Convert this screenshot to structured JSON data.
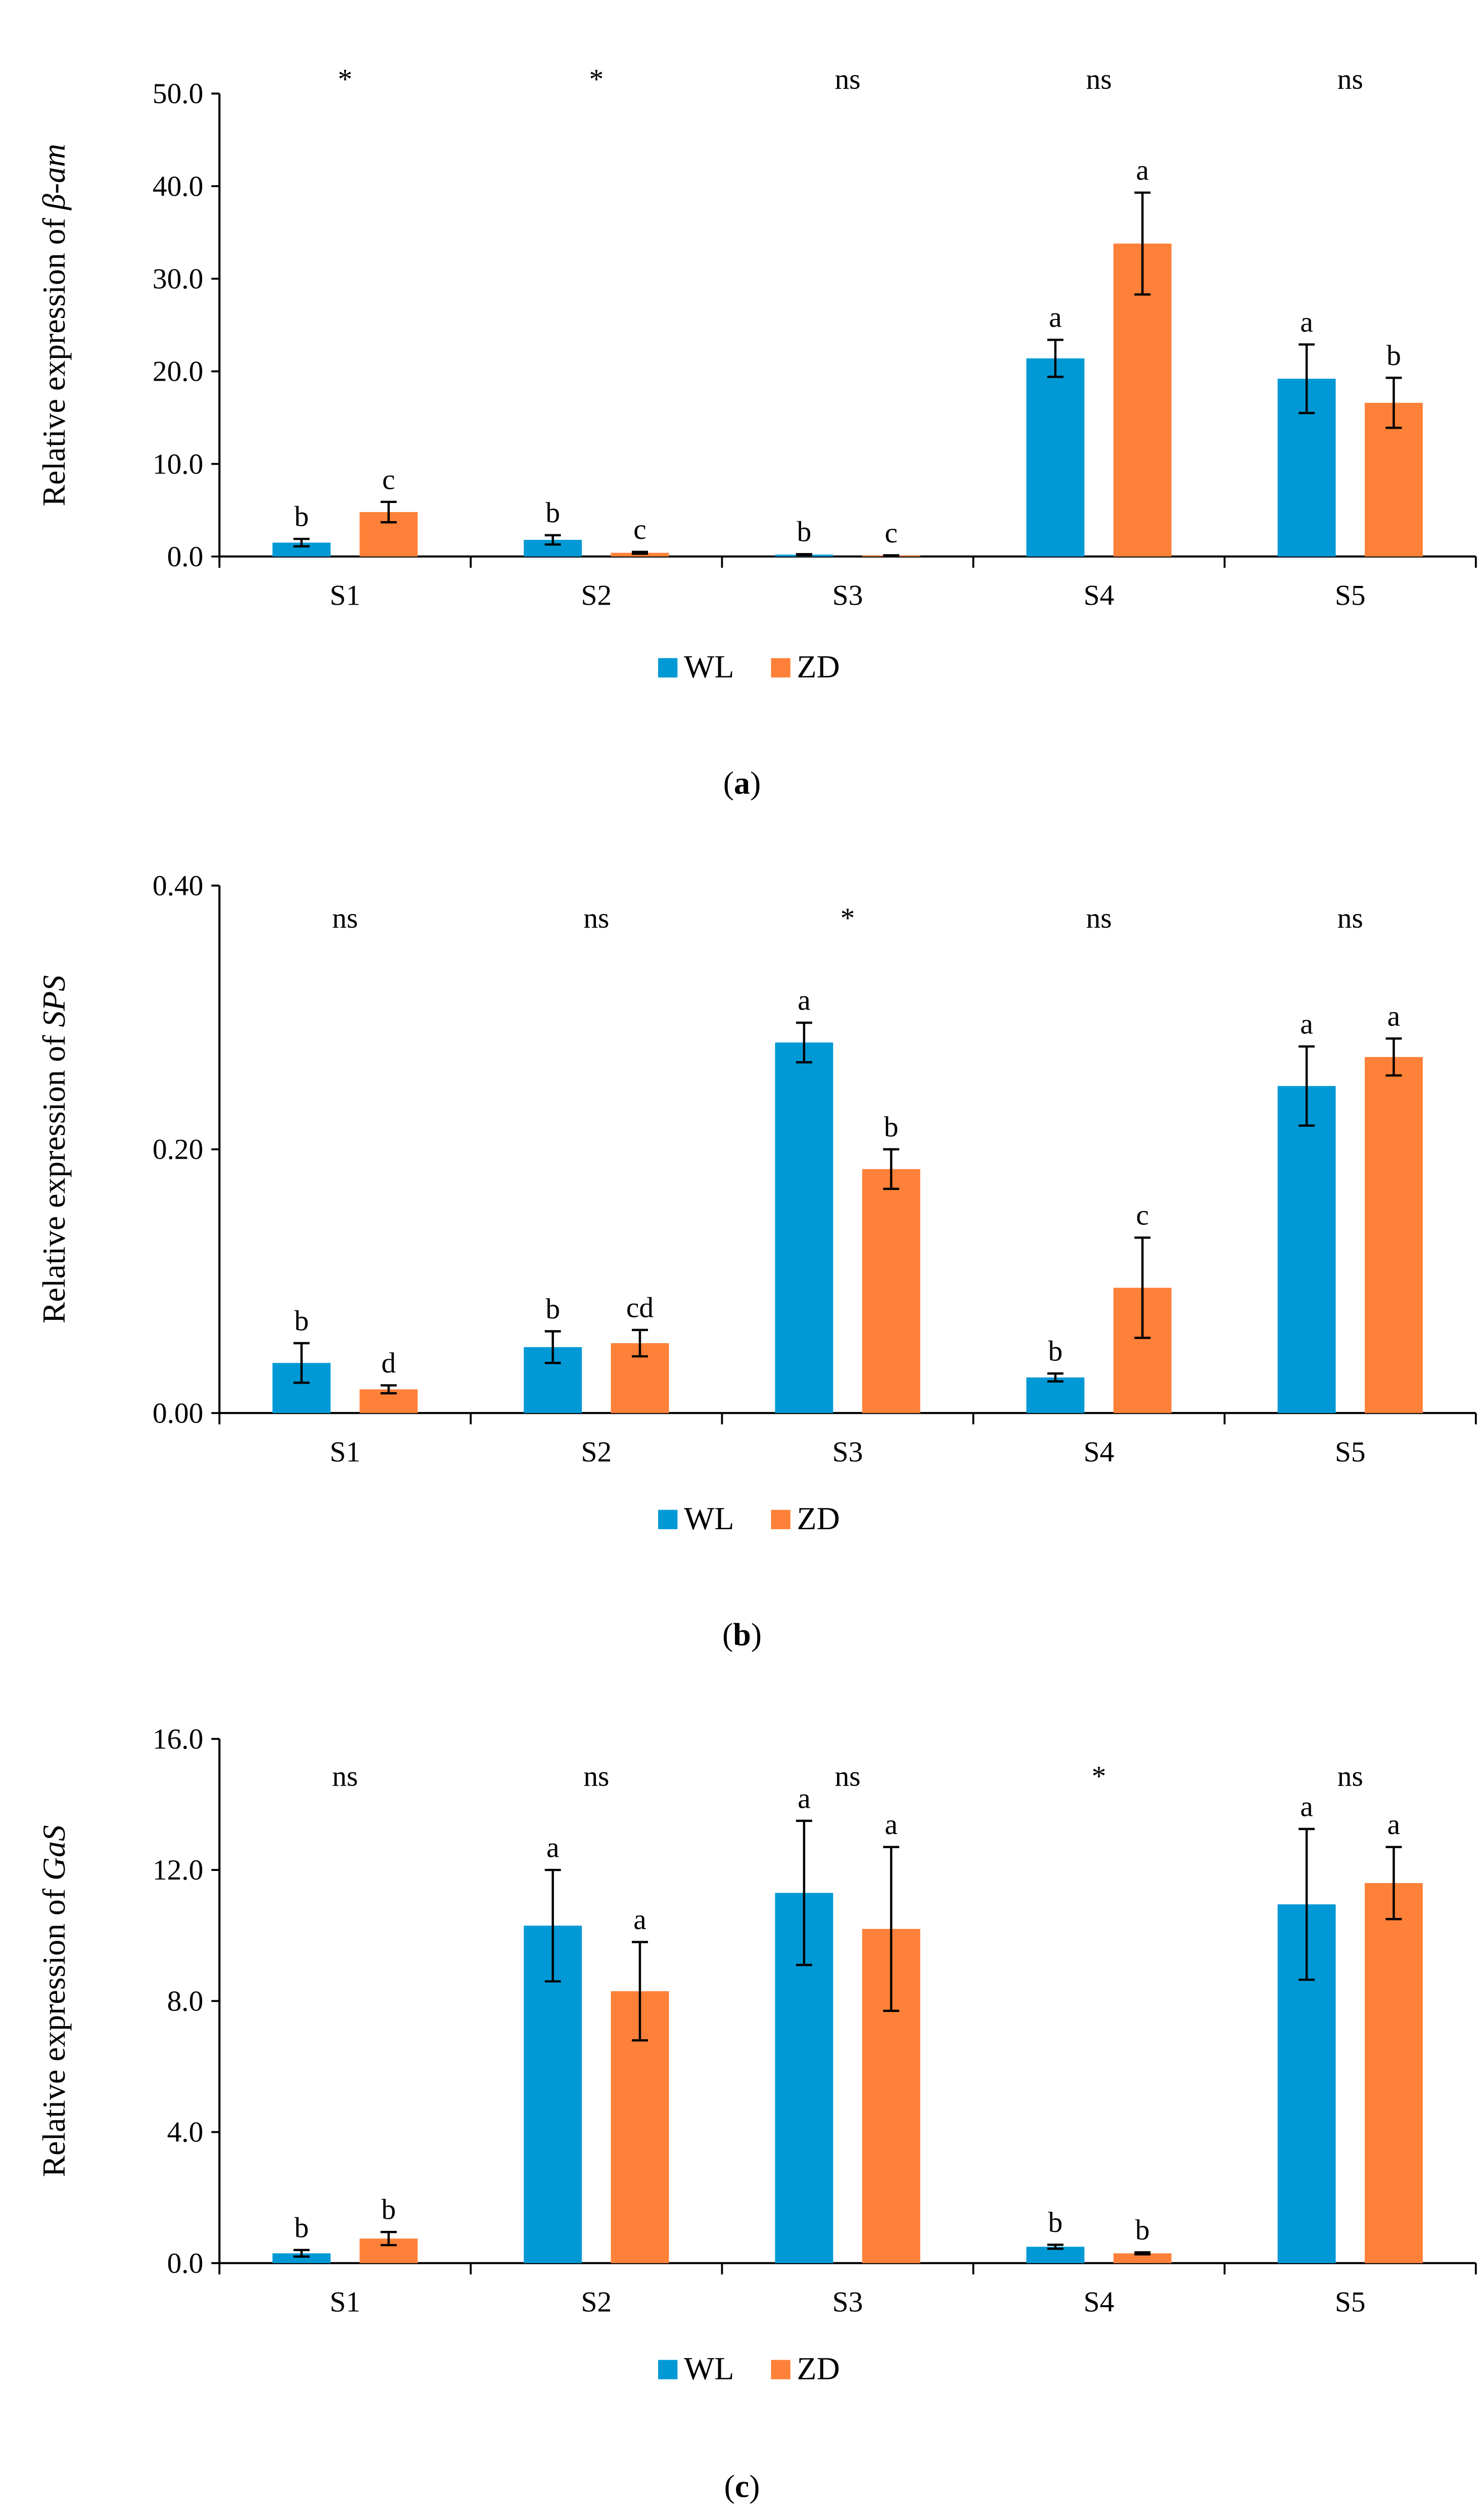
{
  "colors": {
    "WL": "#0099D5",
    "ZD": "#FF8139"
  },
  "chart_data": [
    {
      "type": "bar",
      "panel_label": "a",
      "ylabel_prefix": "Relative expression of ",
      "ylabel_gene": "β-am",
      "ylim": [
        0,
        50
      ],
      "yticks": [
        "0.0",
        "10.0",
        "20.0",
        "30.0",
        "40.0",
        "50.0"
      ],
      "ytick_values": [
        0,
        10,
        20,
        30,
        40,
        50
      ],
      "categories": [
        "S1",
        "S2",
        "S3",
        "S4",
        "S5"
      ],
      "significance": [
        "*",
        "*",
        "ns",
        "ns",
        "ns"
      ],
      "legend": [
        "WL",
        "ZD"
      ],
      "legend_position": "bottom",
      "series": [
        {
          "name": "WL",
          "values": [
            1.5,
            1.8,
            0.2,
            21.4,
            19.2
          ],
          "errors": [
            0.4,
            0.5,
            0.05,
            2.0,
            3.7
          ],
          "letters": [
            "b",
            "b",
            "b",
            "a",
            "a"
          ]
        },
        {
          "name": "ZD",
          "values": [
            4.8,
            0.4,
            0.1,
            33.8,
            16.6
          ],
          "errors": [
            1.1,
            0.1,
            0.03,
            5.5,
            2.7
          ],
          "letters": [
            "c",
            "c",
            "c",
            "a",
            "b"
          ]
        }
      ]
    },
    {
      "type": "bar",
      "panel_label": "b",
      "ylabel_prefix": "Relative expression of ",
      "ylabel_gene": "SPS",
      "ylim": [
        0,
        0.4
      ],
      "yticks": [
        "0.00",
        "0.20",
        "0.40"
      ],
      "ytick_values": [
        0,
        0.2,
        0.4
      ],
      "categories": [
        "S1",
        "S2",
        "S3",
        "S4",
        "S5"
      ],
      "significance": [
        "ns",
        "ns",
        "*",
        "ns",
        "ns"
      ],
      "legend": [
        "WL",
        "ZD"
      ],
      "legend_position": "bottom",
      "series": [
        {
          "name": "WL",
          "values": [
            0.038,
            0.05,
            0.281,
            0.027,
            0.248
          ],
          "errors": [
            0.015,
            0.012,
            0.015,
            0.003,
            0.03
          ],
          "letters": [
            "b",
            "b",
            "a",
            "b",
            "a"
          ]
        },
        {
          "name": "ZD",
          "values": [
            0.018,
            0.053,
            0.185,
            0.095,
            0.27
          ],
          "errors": [
            0.003,
            0.01,
            0.015,
            0.038,
            0.014
          ],
          "letters": [
            "d",
            "cd",
            "b",
            "c",
            "a"
          ]
        }
      ]
    },
    {
      "type": "bar",
      "panel_label": "c",
      "ylabel_prefix": "Relative expression of ",
      "ylabel_gene": "GaS",
      "ylim": [
        0,
        16
      ],
      "yticks": [
        "0.0",
        "4.0",
        "8.0",
        "12.0",
        "16.0"
      ],
      "ytick_values": [
        0,
        4,
        8,
        12,
        16
      ],
      "categories": [
        "S1",
        "S2",
        "S3",
        "S4",
        "S5"
      ],
      "significance": [
        "ns",
        "ns",
        "ns",
        "*",
        "ns"
      ],
      "legend": [
        "WL",
        "ZD"
      ],
      "legend_position": "bottom",
      "series": [
        {
          "name": "WL",
          "values": [
            0.3,
            10.3,
            11.3,
            0.5,
            10.95
          ],
          "errors": [
            0.1,
            1.7,
            2.2,
            0.06,
            2.3
          ],
          "letters": [
            "b",
            "a",
            "a",
            "b",
            "a"
          ]
        },
        {
          "name": "ZD",
          "values": [
            0.75,
            8.3,
            10.2,
            0.3,
            11.6
          ],
          "errors": [
            0.2,
            1.5,
            2.5,
            0.03,
            1.1
          ],
          "letters": [
            "b",
            "a",
            "a",
            "b",
            "a"
          ]
        }
      ]
    }
  ]
}
